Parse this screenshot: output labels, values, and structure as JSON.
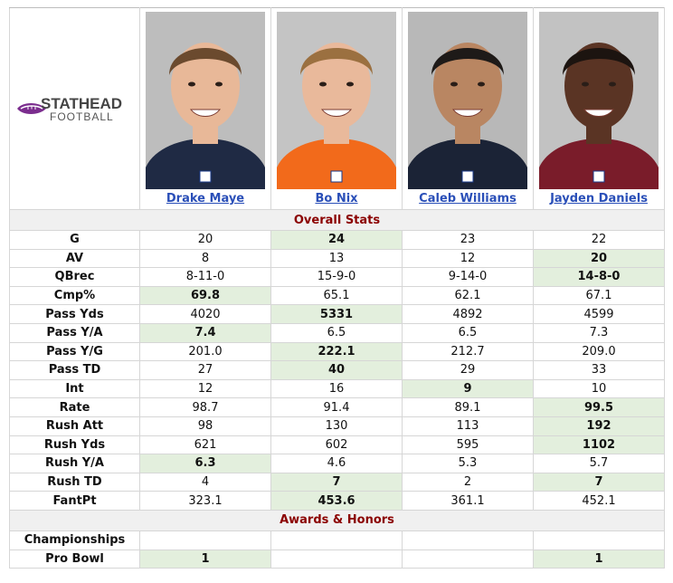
{
  "brand": {
    "line1": "STATHEAD",
    "line2": "FOOTBALL"
  },
  "players": [
    {
      "name": "Drake Maye",
      "bg": "#bdbdbd",
      "skin": "#e8b898",
      "hair": "#6b4a2e",
      "jersey": "#1f2a44"
    },
    {
      "name": "Bo Nix",
      "bg": "#c4c4c4",
      "skin": "#e9b99b",
      "hair": "#9b7040",
      "jersey": "#f26a1b"
    },
    {
      "name": "Caleb Williams",
      "bg": "#b8b8b8",
      "skin": "#b98662",
      "hair": "#1e1a18",
      "jersey": "#1b2336"
    },
    {
      "name": "Jayden Daniels",
      "bg": "#c2c2c2",
      "skin": "#5a3424",
      "hair": "#1c1410",
      "jersey": "#7a1c2a"
    }
  ],
  "sections": {
    "overall": "Overall Stats",
    "awards": "Awards & Honors"
  },
  "stats": [
    {
      "label": "G",
      "values": [
        "20",
        "24",
        "23",
        "22"
      ],
      "best": [
        1
      ]
    },
    {
      "label": "AV",
      "values": [
        "8",
        "13",
        "12",
        "20"
      ],
      "best": [
        3
      ]
    },
    {
      "label": "QBrec",
      "values": [
        "8-11-0",
        "15-9-0",
        "9-14-0",
        "14-8-0"
      ],
      "best": [
        3
      ]
    },
    {
      "label": "Cmp%",
      "values": [
        "69.8",
        "65.1",
        "62.1",
        "67.1"
      ],
      "best": [
        0
      ]
    },
    {
      "label": "Pass Yds",
      "values": [
        "4020",
        "5331",
        "4892",
        "4599"
      ],
      "best": [
        1
      ]
    },
    {
      "label": "Pass Y/A",
      "values": [
        "7.4",
        "6.5",
        "6.5",
        "7.3"
      ],
      "best": [
        0
      ]
    },
    {
      "label": "Pass Y/G",
      "values": [
        "201.0",
        "222.1",
        "212.7",
        "209.0"
      ],
      "best": [
        1
      ]
    },
    {
      "label": "Pass TD",
      "values": [
        "27",
        "40",
        "29",
        "33"
      ],
      "best": [
        1
      ]
    },
    {
      "label": "Int",
      "values": [
        "12",
        "16",
        "9",
        "10"
      ],
      "best": [
        2
      ]
    },
    {
      "label": "Rate",
      "values": [
        "98.7",
        "91.4",
        "89.1",
        "99.5"
      ],
      "best": [
        3
      ]
    },
    {
      "label": "Rush Att",
      "values": [
        "98",
        "130",
        "113",
        "192"
      ],
      "best": [
        3
      ]
    },
    {
      "label": "Rush Yds",
      "values": [
        "621",
        "602",
        "595",
        "1102"
      ],
      "best": [
        3
      ]
    },
    {
      "label": "Rush Y/A",
      "values": [
        "6.3",
        "4.6",
        "5.3",
        "5.7"
      ],
      "best": [
        0
      ]
    },
    {
      "label": "Rush TD",
      "values": [
        "4",
        "7",
        "2",
        "7"
      ],
      "best": [
        1,
        3
      ]
    },
    {
      "label": "FantPt",
      "values": [
        "323.1",
        "453.6",
        "361.1",
        "452.1"
      ],
      "best": [
        1
      ]
    }
  ],
  "awards": [
    {
      "label": "Championships",
      "values": [
        "",
        "",
        "",
        ""
      ],
      "best": []
    },
    {
      "label": "Pro Bowl",
      "values": [
        "1",
        "",
        "",
        "1"
      ],
      "best": [
        0,
        3
      ]
    }
  ]
}
